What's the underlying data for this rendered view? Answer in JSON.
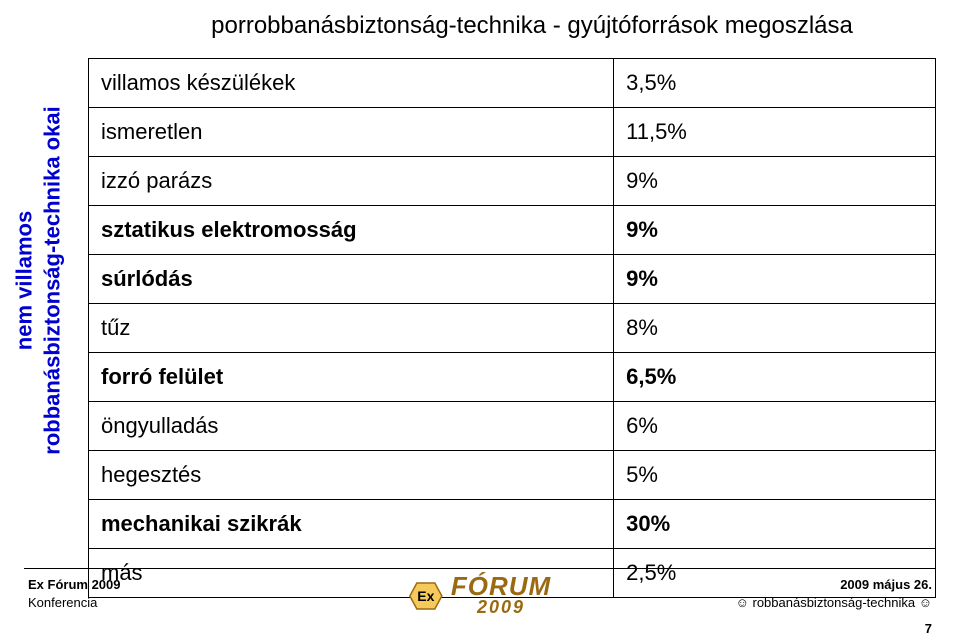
{
  "sidebar": {
    "line1": "nem villamos",
    "line2": "robbanásbiztonság-technika okai",
    "color": "#0000d0"
  },
  "title": "porrobbanásbiztonság-technika - gyújtóforrások megoszlása",
  "rows": [
    {
      "label": "villamos készülékek",
      "value": "3,5%",
      "bold": false
    },
    {
      "label": "ismeretlen",
      "value": "11,5%",
      "bold": false
    },
    {
      "label": "izzó parázs",
      "value": "9%",
      "bold": false
    },
    {
      "label": "sztatikus elektromosság",
      "value": "9%",
      "bold": true
    },
    {
      "label": "súrlódás",
      "value": "9%",
      "bold": true
    },
    {
      "label": "tűz",
      "value": "8%",
      "bold": false
    },
    {
      "label": "forró felület",
      "value": "6,5%",
      "bold": true
    },
    {
      "label": "öngyulladás",
      "value": "6%",
      "bold": false
    },
    {
      "label": "hegesztés",
      "value": "5%",
      "bold": false
    },
    {
      "label": "mechanikai szikrák",
      "value": "30%",
      "bold": true
    },
    {
      "label": "más",
      "value": "2,5%",
      "bold": false
    }
  ],
  "footer": {
    "left_line1": "Ex Fórum 2009",
    "left_line2": "Konferencia",
    "right_line1": "2009 május 26.",
    "right_line2": "☺ robbanásbiztonság-technika ☺",
    "logo_word": "FÓRUM",
    "logo_year": "2009",
    "logo_ex": "Ex",
    "logo_color": "#9a6a12",
    "page_number": "7"
  },
  "style": {
    "table_border_color": "#000000",
    "table_font_size_pt": 16,
    "title_font_size_pt": 18,
    "background": "#ffffff"
  }
}
